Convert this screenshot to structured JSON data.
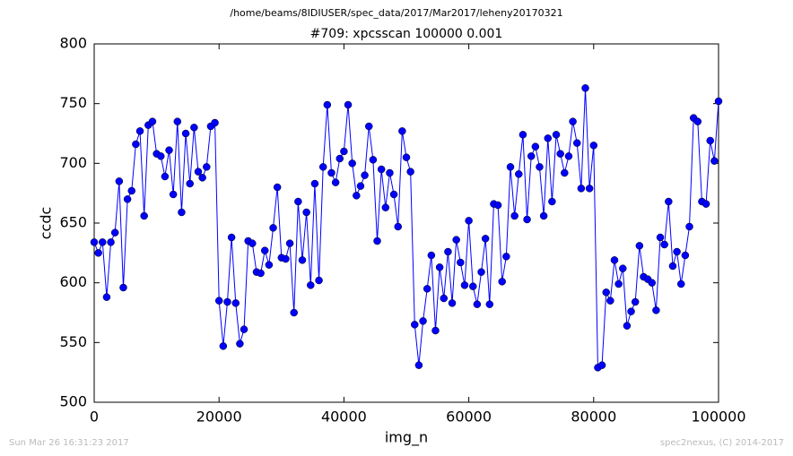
{
  "chart_data": {
    "type": "line",
    "suptitle": "/home/beams/8IDIUSER/spec_data/2017/Mar2017/leheny20170321",
    "title": "#709: xpcsscan 100000 0.001",
    "x_label": "img_n",
    "y_label": "ccdc",
    "footer_left": "Sun Mar 26 16:31:23 2017",
    "footer_right": "spec2nexus, (C) 2014-2017",
    "x": [
      0,
      667,
      1333,
      2000,
      2667,
      3333,
      4000,
      4667,
      5333,
      6000,
      6667,
      7333,
      8000,
      8667,
      9333,
      10000,
      10667,
      11333,
      12000,
      12667,
      13333,
      14000,
      14667,
      15333,
      16000,
      16667,
      17333,
      18000,
      18667,
      19333,
      20000,
      20667,
      21333,
      22000,
      22667,
      23333,
      24000,
      24667,
      25333,
      26000,
      26667,
      27333,
      28000,
      28667,
      29333,
      30000,
      30667,
      31333,
      32000,
      32667,
      33333,
      34000,
      34667,
      35333,
      36000,
      36667,
      37333,
      38000,
      38667,
      39333,
      40000,
      40667,
      41333,
      42000,
      42667,
      43333,
      44000,
      44667,
      45333,
      46000,
      46667,
      47333,
      48000,
      48667,
      49333,
      50000,
      50667,
      51333,
      52000,
      52667,
      53333,
      54000,
      54667,
      55333,
      56000,
      56667,
      57333,
      58000,
      58667,
      59333,
      60000,
      60667,
      61333,
      62000,
      62667,
      63333,
      64000,
      64667,
      65333,
      66000,
      66667,
      67333,
      68000,
      68667,
      69333,
      70000,
      70667,
      71333,
      72000,
      72667,
      73333,
      74000,
      74667,
      75333,
      76000,
      76667,
      77333,
      78000,
      78667,
      79333,
      80000,
      80667,
      81333,
      82000,
      82667,
      83333,
      84000,
      84667,
      85333,
      86000,
      86667,
      87333,
      88000,
      88667,
      89333,
      90000,
      90667,
      91333,
      92000,
      92667,
      93333,
      94000,
      94667,
      95333,
      96000,
      96667,
      97333,
      98000,
      98667,
      99333,
      100000
    ],
    "series": [
      {
        "color": "#0000ff",
        "values": [
          634,
          625,
          634,
          588,
          634,
          642,
          685,
          596,
          670,
          677,
          716,
          727,
          656,
          732,
          735,
          708,
          706,
          689,
          711,
          674,
          735,
          659,
          725,
          683,
          730,
          693,
          688,
          697,
          731,
          734,
          585,
          547,
          584,
          638,
          583,
          549,
          561,
          635,
          633,
          609,
          608,
          627,
          615,
          646,
          680,
          621,
          620,
          633,
          575,
          668,
          619,
          659,
          598,
          683,
          602,
          697,
          749,
          692,
          684,
          704,
          710,
          749,
          700,
          673,
          681,
          690,
          731,
          703,
          635,
          695,
          663,
          692,
          674,
          647,
          727,
          705,
          693,
          565,
          531,
          568,
          595,
          623,
          560,
          613,
          587,
          626,
          583,
          636,
          617,
          598,
          652,
          597,
          582,
          609,
          637,
          582,
          666,
          665,
          601,
          622,
          697,
          656,
          691,
          724,
          653,
          706,
          714,
          697,
          656,
          721,
          668,
          724,
          708,
          692,
          706,
          735,
          717,
          679,
          763,
          679,
          715,
          529,
          531,
          592,
          585,
          619,
          599,
          612,
          564,
          576,
          584,
          631,
          605,
          603,
          600,
          577,
          638,
          632,
          668,
          614,
          626,
          599,
          623,
          647,
          738,
          735,
          668,
          666,
          719,
          702,
          752
        ]
      }
    ],
    "xlim": [
      0,
      100000
    ],
    "ylim": [
      500,
      800
    ],
    "xticks": [
      0,
      20000,
      40000,
      60000,
      80000,
      100000
    ],
    "yticks": [
      500,
      550,
      600,
      650,
      700,
      750,
      800
    ],
    "grid": false
  }
}
